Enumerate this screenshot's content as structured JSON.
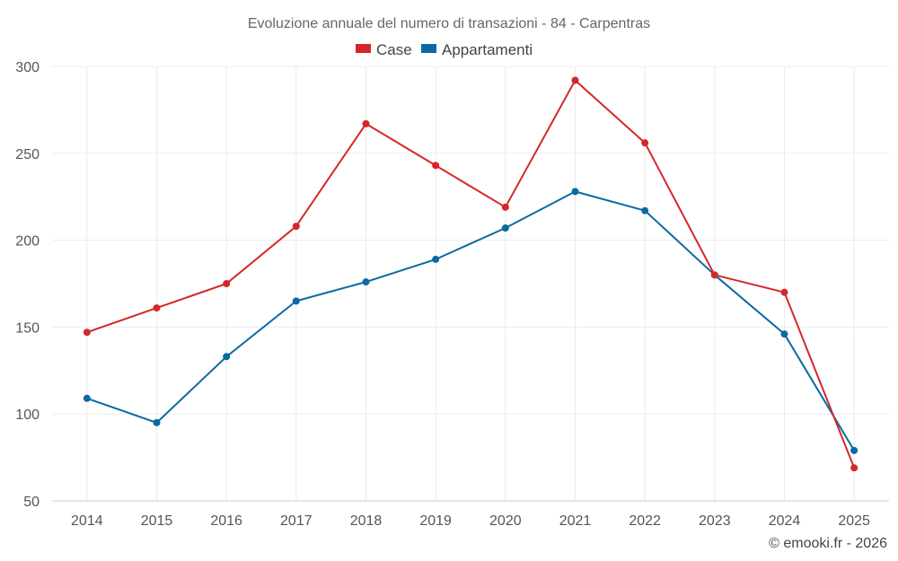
{
  "chart_data": {
    "type": "line",
    "title": "Evoluzione annuale del numero di transazioni - 84 - Carpentras",
    "categories": [
      "2014",
      "2015",
      "2016",
      "2017",
      "2018",
      "2019",
      "2020",
      "2021",
      "2022",
      "2023",
      "2024",
      "2025"
    ],
    "series": [
      {
        "name": "Case",
        "color": "#d3272a",
        "values": [
          147,
          161,
          175,
          208,
          267,
          243,
          219,
          292,
          256,
          180,
          170,
          69
        ]
      },
      {
        "name": "Appartamenti",
        "color": "#0b6aa2",
        "values": [
          109,
          95,
          133,
          165,
          176,
          189,
          207,
          228,
          217,
          180,
          146,
          79
        ]
      }
    ],
    "ylim": [
      50,
      300
    ],
    "yticks": [
      50,
      100,
      150,
      200,
      250,
      300
    ],
    "xlabel": "",
    "ylabel": "",
    "grid": true,
    "legend": "top-center"
  },
  "credit": "© emooki.fr - 2026"
}
